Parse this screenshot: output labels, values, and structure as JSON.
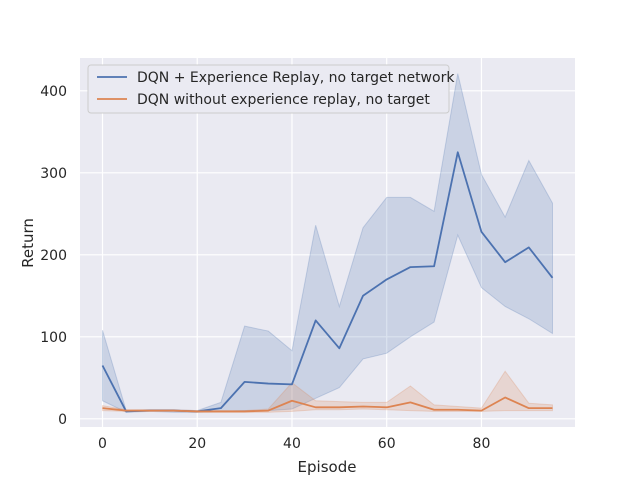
{
  "chart_data": {
    "type": "line",
    "xlabel": "Episode",
    "ylabel": "Return",
    "xlim": [
      -4.75,
      99.75
    ],
    "ylim": [
      -10,
      440
    ],
    "xticks": [
      0,
      20,
      40,
      60,
      80
    ],
    "yticks": [
      0,
      100,
      200,
      300,
      400
    ],
    "grid": true,
    "legend_position": "top-left",
    "x": [
      0,
      5,
      10,
      15,
      20,
      25,
      30,
      35,
      40,
      45,
      50,
      55,
      60,
      65,
      70,
      75,
      80,
      85,
      90,
      95
    ],
    "series": [
      {
        "name": "DQN + Experience Replay, no target network",
        "color": "#4c72b0",
        "values": [
          65,
          9,
          10,
          10,
          9,
          13,
          45,
          43,
          42,
          120,
          86,
          150,
          170,
          185,
          186,
          325,
          228,
          191,
          209,
          172
        ],
        "lower": [
          22,
          8,
          9,
          8,
          8,
          9,
          10,
          10,
          12,
          25,
          38,
          73,
          80,
          100,
          118,
          224,
          160,
          137,
          122,
          104
        ],
        "upper": [
          108,
          10,
          11,
          11,
          10,
          20,
          113,
          107,
          83,
          236,
          137,
          233,
          270,
          270,
          253,
          421,
          298,
          246,
          315,
          263
        ]
      },
      {
        "name": "DQN without experience replay, no target",
        "color": "#dd8452",
        "values": [
          13,
          10,
          10,
          10,
          9,
          9,
          9,
          10,
          22,
          14,
          14,
          15,
          14,
          20,
          11,
          11,
          10,
          26,
          13,
          13
        ],
        "lower": [
          10,
          9,
          9,
          9,
          8,
          8,
          8,
          8,
          9,
          11,
          11,
          12,
          11,
          10,
          9,
          9,
          9,
          10,
          10,
          10
        ],
        "upper": [
          16,
          11,
          11,
          11,
          10,
          10,
          10,
          12,
          44,
          22,
          21,
          20,
          20,
          40,
          17,
          15,
          13,
          58,
          19,
          17
        ]
      }
    ]
  }
}
